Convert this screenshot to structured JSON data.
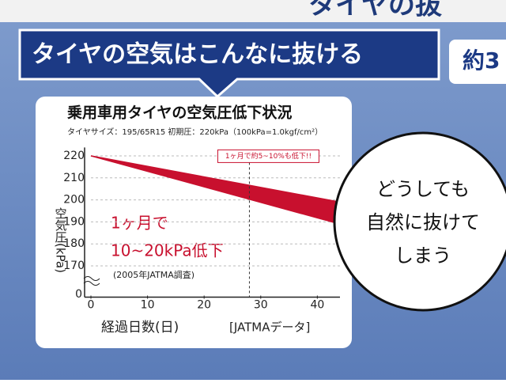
{
  "poster": {
    "top_text": "タイヤの抜",
    "banner": "タイヤの空気はこんなに抜ける",
    "banner_right": "約3",
    "bubble": [
      "どうしても",
      "自然に抜けて",
      "しまう"
    ]
  },
  "chart_data": {
    "type": "area",
    "title": "乗用車用タイヤの空気圧低下状況",
    "subtitle": "タイヤサイズ：195/65R15 初期圧：220kPa（100kPa=1.0kgf/cm²）",
    "y_label": "空気圧(kPa)",
    "x_label": "経過日数(日)",
    "x_note": "[JATMAデータ]",
    "x": [
      0,
      44
    ],
    "series": [
      {
        "color": "#c8102e",
        "values": [
          220,
          199
        ]
      },
      {
        "color": "#c8102e",
        "values": [
          220,
          189
        ]
      }
    ],
    "xlim": [
      0,
      44
    ],
    "ylim": [
      163,
      222
    ],
    "xticks": [
      0,
      10,
      20,
      30,
      40
    ],
    "yticks": [
      170,
      180,
      190,
      200,
      210,
      220
    ],
    "y_origin_label": "0",
    "marker_x": 28,
    "annotation": "1ヶ月で約5~10%も低下!!",
    "notes": [
      "1ヶ月で",
      "10~20kPa低下"
    ],
    "source": "(2005年JATMA調査)",
    "grid": true
  }
}
